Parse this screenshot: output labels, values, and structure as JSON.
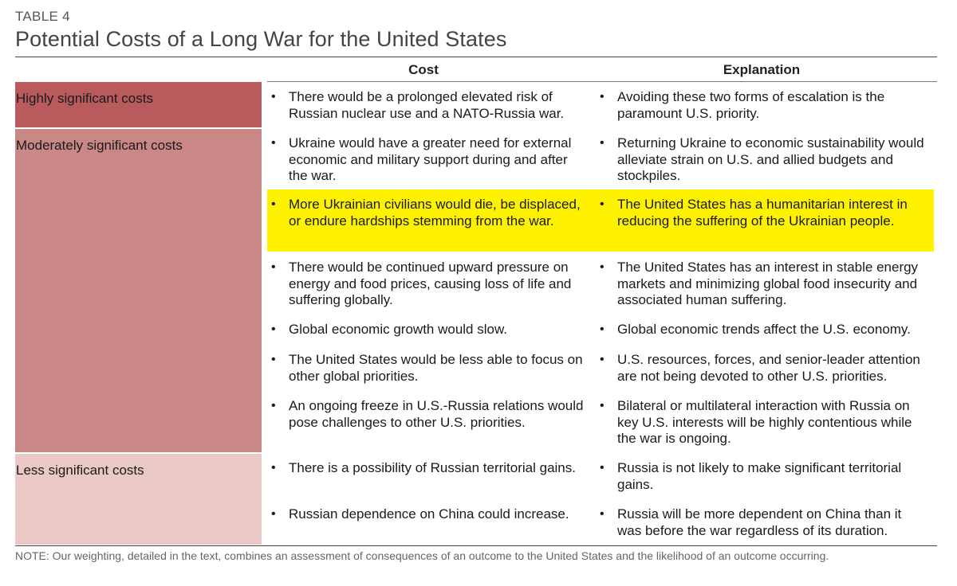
{
  "table_label": "TABLE 4",
  "title": "Potential Costs of a Long War for the United States",
  "headers": {
    "cost": "Cost",
    "explanation": "Explanation"
  },
  "categories": {
    "high": "Highly significant costs",
    "moderate": "Moderately significant costs",
    "low": "Less significant costs"
  },
  "rows": [
    {
      "cost": "There would be a prolonged elevated risk of Russian nuclear use and a NATO-Russia war.",
      "explanation": "Avoiding these two forms of escalation is the paramount U.S. priority."
    },
    {
      "cost": "Ukraine would have a greater need for external economic and military support during and after the war.",
      "explanation": "Returning Ukraine to economic sustainability would alleviate strain on U.S. and allied budgets and stockpiles."
    },
    {
      "cost": "More Ukrainian civilians would die, be displaced, or endure hardships stemming from the war.",
      "explanation": "The United States has a humanitarian interest in reducing the suffering of the Ukrainian people."
    },
    {
      "cost": "There would be continued upward pressure on energy and food prices, causing loss of life and suffering globally.",
      "explanation": "The United States has an interest in stable energy markets and minimizing global food insecurity and associated human suffering."
    },
    {
      "cost": "Global economic growth would slow.",
      "explanation": "Global economic trends affect the U.S. economy."
    },
    {
      "cost": "The United States would be less able to focus on other global priorities.",
      "explanation": "U.S. resources, forces, and senior-leader attention are not being devoted to other U.S. priorities."
    },
    {
      "cost": "An ongoing freeze in U.S.-Russia relations would pose challenges to other U.S. priorities.",
      "explanation": "Bilateral or multilateral interaction with Russia on key U.S. interests will be highly contentious while the war is ongoing."
    },
    {
      "cost": "There is a possibility of Russian territorial gains.",
      "explanation": "Russia is not likely to make significant territorial gains."
    },
    {
      "cost": "Russian dependence on China could increase.",
      "explanation": "Russia will be more dependent on China than it was before the war regardless of its duration."
    }
  ],
  "bullet": "•",
  "note": "NOTE: Our weighting, detailed in the text, combines an assessment of consequences of an outcome to the United States and the likelihood of an outcome occurring.",
  "colors": {
    "high": "#b95a5c",
    "moderate": "#c98786",
    "low": "#e9c8c6",
    "highlight": "#fff200"
  }
}
